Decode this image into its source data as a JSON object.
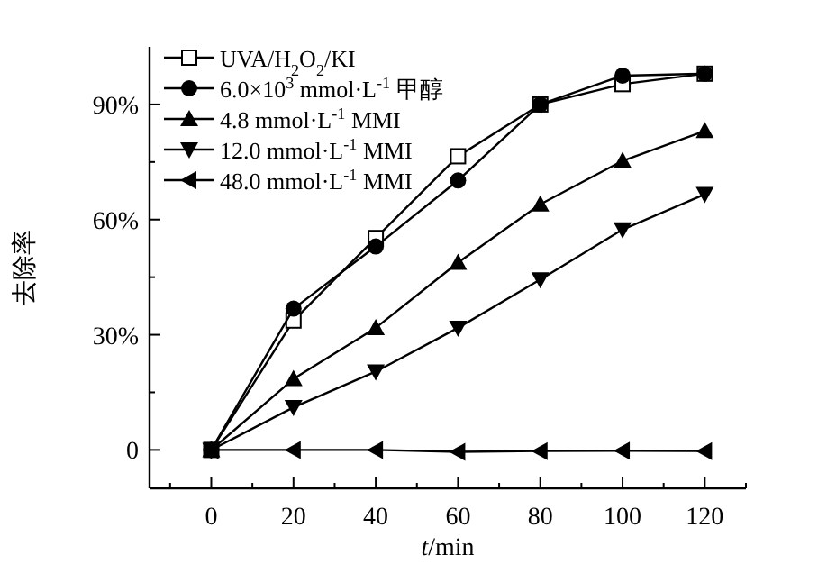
{
  "chart_data": {
    "type": "line",
    "xlabel": "*t*/min",
    "ylabel": "去除率",
    "x": [
      0,
      20,
      40,
      60,
      80,
      100,
      120
    ],
    "xlim": [
      -15,
      130
    ],
    "ylim": [
      -10,
      105
    ],
    "xticks": [
      {
        "value": -10,
        "label": null
      },
      0,
      {
        "value": 10,
        "label": null
      },
      20,
      {
        "value": 30,
        "label": null
      },
      40,
      {
        "value": 50,
        "label": null
      },
      60,
      {
        "value": 70,
        "label": null
      },
      80,
      {
        "value": 90,
        "label": null
      },
      100,
      {
        "value": 110,
        "label": null
      },
      120,
      {
        "value": 130,
        "label": null
      }
    ],
    "yticks": [
      0,
      {
        "value": 15,
        "label": null
      },
      {
        "value": 30,
        "label": "30%"
      },
      {
        "value": 45,
        "label": null
      },
      {
        "value": 60,
        "label": "60%"
      },
      {
        "value": 75,
        "label": null
      },
      {
        "value": 90,
        "label": "90%"
      }
    ],
    "grid": false,
    "legend": "top left",
    "line_style": "solid",
    "series": [
      {
        "name": "UVA/H$_{2}$O$_{2}$/KI",
        "color": "#000000",
        "marker": "square",
        "values": [
          0,
          33.7,
          55.2,
          76.5,
          90,
          95.3,
          98
        ]
      },
      {
        "name": "6.0×10$^{3}$ mmol·L$^{-1}$ 甲醇",
        "color": "#000000",
        "marker": "circle",
        "values": [
          0,
          36.8,
          53,
          70.2,
          90,
          97.5,
          98
        ]
      },
      {
        "name": "4.8 mmol·L$^{-1}$ MMI",
        "color": "#000000",
        "marker": "triangle",
        "values": [
          0,
          18.5,
          31.8,
          48.8,
          64,
          75.3,
          83.1
        ]
      },
      {
        "name": "12.0 mmol·L$^{-1}$ MMI",
        "color": "#000000",
        "marker": "triangle-down",
        "values": [
          0,
          11.1,
          20.4,
          31.8,
          44.4,
          57.4,
          66.6
        ]
      },
      {
        "name": "48.0 mmol·L$^{-1}$ MMI",
        "color": "#000000",
        "marker": "triangle-left",
        "values": [
          0,
          0,
          0,
          -0.5,
          -0.3,
          -0.2,
          -0.3
        ]
      }
    ]
  }
}
